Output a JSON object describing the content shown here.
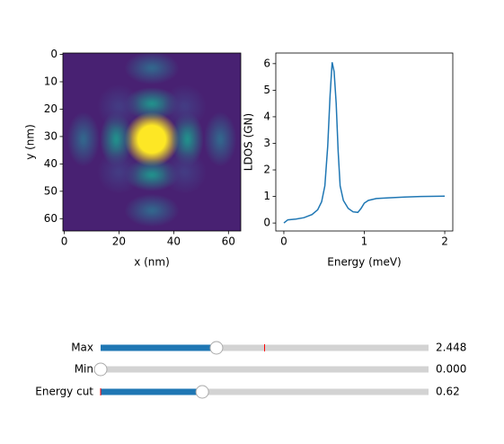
{
  "chart_data": [
    {
      "type": "heatmap",
      "xlabel": "x (nm)",
      "ylabel": "y (nm)",
      "xlim": [
        -0.5,
        64.5
      ],
      "ylim": [
        64.5,
        -0.5
      ],
      "xticks": [
        0,
        20,
        40,
        60
      ],
      "yticks": [
        0,
        10,
        20,
        30,
        40,
        50,
        60
      ],
      "background": 0.12,
      "spots": {
        "x": [
          32,
          32,
          32,
          19,
          45,
          32,
          32,
          7,
          57,
          20,
          44,
          20,
          44
        ],
        "y": [
          31,
          18,
          44,
          31,
          31,
          5,
          57,
          31,
          31,
          19,
          19,
          43,
          43
        ],
        "values": [
          1.0,
          0.5,
          0.5,
          0.5,
          0.5,
          0.4,
          0.4,
          0.4,
          0.4,
          0.22,
          0.22,
          0.22,
          0.22
        ],
        "rx": [
          5,
          5,
          5,
          3,
          3,
          5,
          5,
          3,
          3,
          4,
          4,
          4,
          4
        ],
        "ry": [
          5,
          3,
          3,
          5,
          5,
          3,
          3,
          5,
          5,
          4,
          4,
          4,
          4
        ]
      }
    },
    {
      "type": "line",
      "xlabel": "Energy (meV)",
      "ylabel": "LDOS (GN)",
      "xlim": [
        -0.1,
        2.1
      ],
      "ylim": [
        -0.3,
        6.4
      ],
      "xticks": [
        0,
        1,
        2
      ],
      "yticks": [
        0,
        1,
        2,
        3,
        4,
        5,
        6
      ],
      "color": "#1f77b4",
      "x": [
        0,
        0.05,
        0.15,
        0.25,
        0.35,
        0.42,
        0.47,
        0.51,
        0.545,
        0.575,
        0.6,
        0.625,
        0.65,
        0.675,
        0.7,
        0.74,
        0.8,
        0.86,
        0.92,
        0.96,
        1.0,
        1.05,
        1.15,
        1.3,
        1.5,
        1.7,
        2.0
      ],
      "values": [
        0,
        0.12,
        0.15,
        0.2,
        0.32,
        0.5,
        0.8,
        1.4,
        2.9,
        4.8,
        6.05,
        5.7,
        4.5,
        2.7,
        1.4,
        0.85,
        0.55,
        0.42,
        0.4,
        0.55,
        0.75,
        0.85,
        0.92,
        0.95,
        0.98,
        1.0,
        1.01
      ]
    }
  ],
  "sliders": [
    {
      "label": "Max",
      "value": 2.448,
      "value_label": "2.448",
      "min": 0,
      "max": 6.93,
      "init": 3.465
    },
    {
      "label": "Min",
      "value": 0,
      "value_label": "0.000",
      "min": 0,
      "max": 6.93,
      "init": 0
    },
    {
      "label": "Energy cut",
      "value": 0.62,
      "value_label": "0.62",
      "min": 0,
      "max": 2.0,
      "init": 0
    }
  ]
}
